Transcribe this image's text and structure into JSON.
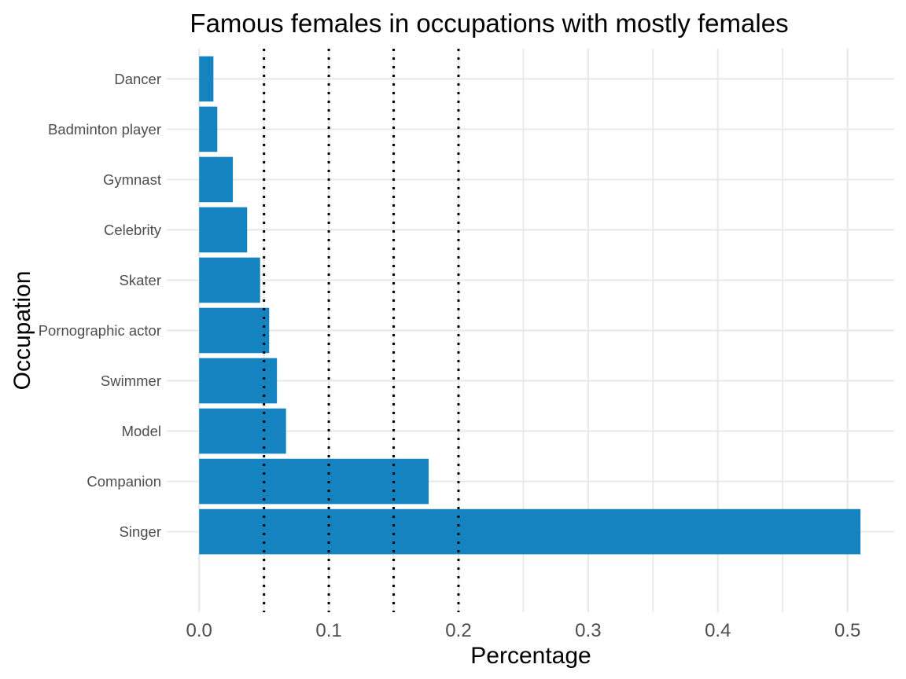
{
  "figure": {
    "background_color": "#ffffff"
  },
  "chart_data": {
    "type": "bar",
    "orientation": "horizontal",
    "title": "Famous females in occupations with mostly females",
    "xlabel": "Percentage",
    "ylabel": "Occupation",
    "categories": [
      "Dancer",
      "Badminton player",
      "Gymnast",
      "Celebrity",
      "Skater",
      "Pornographic actor",
      "Swimmer",
      "Model",
      "Companion",
      "Singer"
    ],
    "values": [
      0.011,
      0.014,
      0.026,
      0.037,
      0.047,
      0.054,
      0.06,
      0.067,
      0.177,
      0.51
    ],
    "bar_color": "#1583bf",
    "xlim": [
      -0.025,
      0.536
    ],
    "x_ticks": [
      {
        "value": 0.0,
        "label": "0.0"
      },
      {
        "value": 0.1,
        "label": "0.1"
      },
      {
        "value": 0.2,
        "label": "0.2"
      },
      {
        "value": 0.3,
        "label": "0.3"
      },
      {
        "value": 0.4,
        "label": "0.4"
      },
      {
        "value": 0.5,
        "label": "0.5"
      }
    ],
    "x_minor_ticks": [
      0.05,
      0.15,
      0.25,
      0.35,
      0.45
    ],
    "reference_lines": {
      "values": [
        0.05,
        0.1,
        0.15,
        0.2
      ],
      "style": "dotted",
      "color": "#000000"
    },
    "grid": {
      "vertical_major": true,
      "vertical_minor": true,
      "horizontal_major_at_category_centers": true,
      "color": "#e9e9e9",
      "legend": "none"
    },
    "text_colors": {
      "title": "#000000",
      "axis_titles": "#000000",
      "tick_labels": "#4d4d4d"
    }
  }
}
